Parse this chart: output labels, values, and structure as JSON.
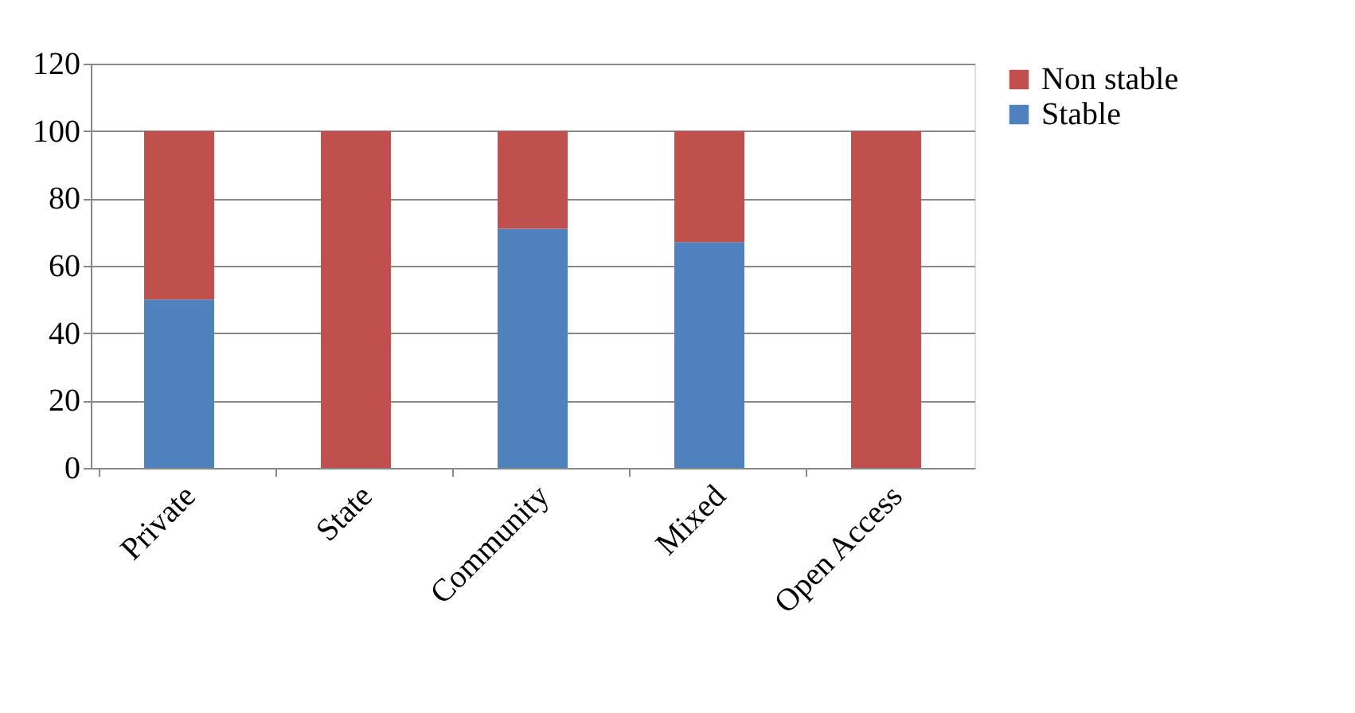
{
  "chart_data": {
    "type": "bar",
    "stacked": true,
    "categories": [
      "Private",
      "State",
      "Community",
      "Mixed",
      "Open Access"
    ],
    "series": [
      {
        "name": "Stable",
        "color": "#4f81bd",
        "values": [
          50,
          0,
          71,
          67,
          0
        ]
      },
      {
        "name": "Non stable",
        "color": "#c0504d",
        "values": [
          50,
          100,
          29,
          33,
          100
        ]
      }
    ],
    "ylim": [
      0,
      120
    ],
    "yticks": [
      0,
      20,
      40,
      60,
      80,
      100,
      120
    ],
    "grid": "y",
    "legend": "right"
  }
}
